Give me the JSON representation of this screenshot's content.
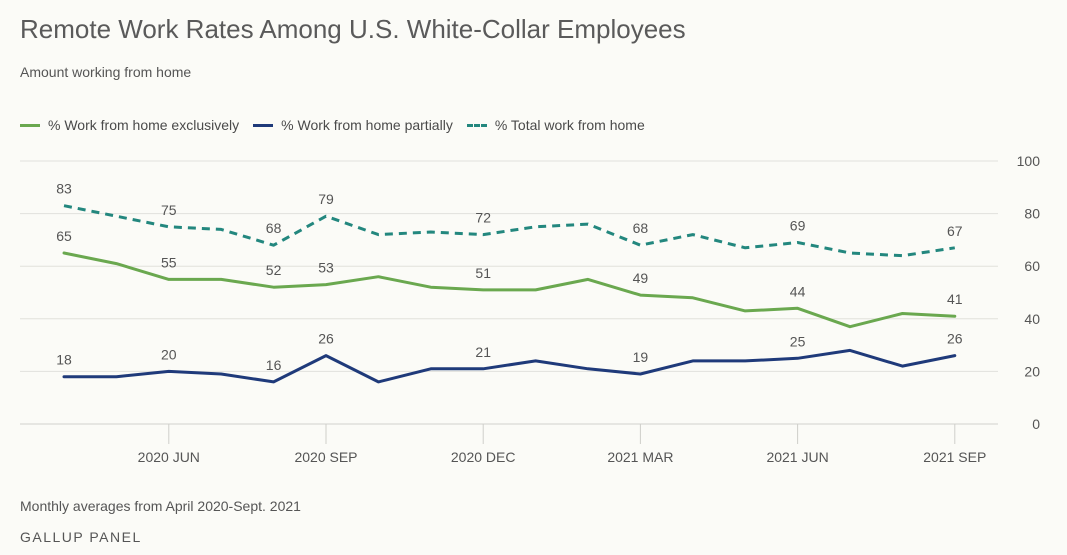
{
  "header": {
    "title": "Remote Work Rates Among U.S. White-Collar Employees",
    "subtitle": "Amount working from home"
  },
  "legend": [
    {
      "label": "% Work from home exclusively",
      "color": "#6aa84f",
      "dash": "solid"
    },
    {
      "label": "% Work from home partially",
      "color": "#1f3a7a",
      "dash": "solid"
    },
    {
      "label": "% Total work from home",
      "color": "#23877e",
      "dash": "dashed"
    }
  ],
  "footer": {
    "note": "Monthly averages from April 2020-Sept. 2021",
    "source": "GALLUP PANEL"
  },
  "chart_data": {
    "type": "line",
    "x": [
      "2020-04",
      "2020-05",
      "2020-06",
      "2020-07",
      "2020-08",
      "2020-09",
      "2020-10",
      "2020-11",
      "2020-12",
      "2021-01",
      "2021-02",
      "2021-03",
      "2021-04",
      "2021-05",
      "2021-06",
      "2021-07",
      "2021-08",
      "2021-09"
    ],
    "x_ticks": [
      {
        "x": "2020-06",
        "label": "2020 JUN"
      },
      {
        "x": "2020-09",
        "label": "2020 SEP"
      },
      {
        "x": "2020-12",
        "label": "2020 DEC"
      },
      {
        "x": "2021-03",
        "label": "2021 MAR"
      },
      {
        "x": "2021-06",
        "label": "2021 JUN"
      },
      {
        "x": "2021-09",
        "label": "2021 SEP"
      }
    ],
    "y_ticks": [
      0,
      20,
      40,
      60,
      80,
      100
    ],
    "ylim": [
      0,
      100
    ],
    "grid": true,
    "y_axis_side": "right",
    "series": [
      {
        "name": "% Work from home exclusively",
        "color": "#6aa84f",
        "dash": "solid",
        "values": [
          65,
          61,
          55,
          55,
          52,
          53,
          56,
          52,
          51,
          51,
          55,
          49,
          48,
          43,
          44,
          37,
          42,
          41
        ],
        "labeled_indices": [
          0,
          2,
          4,
          5,
          8,
          11,
          14,
          17
        ]
      },
      {
        "name": "% Work from home partially",
        "color": "#1f3a7a",
        "dash": "solid",
        "values": [
          18,
          18,
          20,
          19,
          16,
          26,
          16,
          21,
          21,
          24,
          21,
          19,
          24,
          24,
          25,
          28,
          22,
          26
        ],
        "labeled_indices": [
          0,
          2,
          4,
          5,
          8,
          11,
          14,
          17
        ]
      },
      {
        "name": "% Total work from home",
        "color": "#23877e",
        "dash": "dashed",
        "values": [
          83,
          79,
          75,
          74,
          68,
          79,
          72,
          73,
          72,
          75,
          76,
          68,
          72,
          67,
          69,
          65,
          64,
          67
        ],
        "labeled_indices": [
          0,
          2,
          4,
          5,
          8,
          11,
          14,
          17
        ]
      }
    ]
  }
}
